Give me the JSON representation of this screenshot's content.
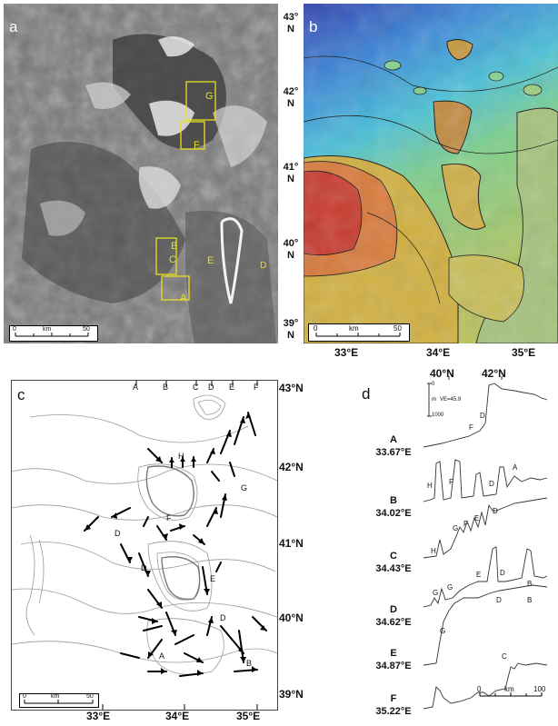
{
  "panels": {
    "a": {
      "label": "a"
    },
    "b": {
      "label": "b"
    },
    "c": {
      "label": "c"
    },
    "d": {
      "label": "d"
    }
  },
  "scalebars": {
    "a": {
      "left": "0",
      "unit": "km",
      "right": "50"
    },
    "b": {
      "left": "0",
      "unit": "km",
      "right": "50"
    },
    "c": {
      "left": "0",
      "unit": "km",
      "right": "50"
    },
    "d": {
      "left": "0",
      "unit": "km",
      "right": "100"
    }
  },
  "latitudes_top": [
    {
      "deg": "43°",
      "hem": "N"
    },
    {
      "deg": "42°",
      "hem": "N"
    },
    {
      "deg": "41°",
      "hem": "N"
    },
    {
      "deg": "40°",
      "hem": "N"
    },
    {
      "deg": "39°",
      "hem": "N"
    }
  ],
  "longitudes_top": [
    "33°E",
    "34°E",
    "35°E"
  ],
  "latitudes_c": [
    "43°N",
    "42°N",
    "41°N",
    "40°N",
    "39°N"
  ],
  "longitudes_c": [
    "33°E",
    "34°E",
    "35°E"
  ],
  "profile_top_ticks": [
    "40°N",
    "42°N"
  ],
  "profile_letters_c": [
    "A",
    "B",
    "C",
    "D",
    "E",
    "F"
  ],
  "box_labels_a": [
    "G",
    "F",
    "B",
    "C",
    "E",
    "D",
    "A"
  ],
  "region_labels_c": [
    "H",
    "G",
    "F",
    "D",
    "D",
    "E",
    "D",
    "A",
    "B"
  ],
  "vertical_scale": {
    "top": "0",
    "unit": "m",
    "bottom": "1000",
    "ve": "VE=45.9"
  },
  "profiles": [
    {
      "letter": "A",
      "lon": "33.67°E"
    },
    {
      "letter": "B",
      "lon": "34.02°E"
    },
    {
      "letter": "C",
      "lon": "34.43°E"
    },
    {
      "letter": "D",
      "lon": "34.62°E"
    },
    {
      "letter": "E",
      "lon": "34.87°E"
    },
    {
      "letter": "F",
      "lon": "35.22°E"
    }
  ],
  "profile_unit_labels": [
    [
      "F",
      "D"
    ],
    [
      "H",
      "F",
      "D",
      "A"
    ],
    [
      "H",
      "G",
      "F",
      "E",
      "D"
    ],
    [
      "G",
      "G",
      "E",
      "D",
      "B"
    ],
    [
      "G",
      "D",
      "B"
    ],
    [
      "C"
    ]
  ],
  "colors": {
    "box": "#e8e020",
    "contour": "#9a9a9a",
    "arrow": "#000000"
  }
}
